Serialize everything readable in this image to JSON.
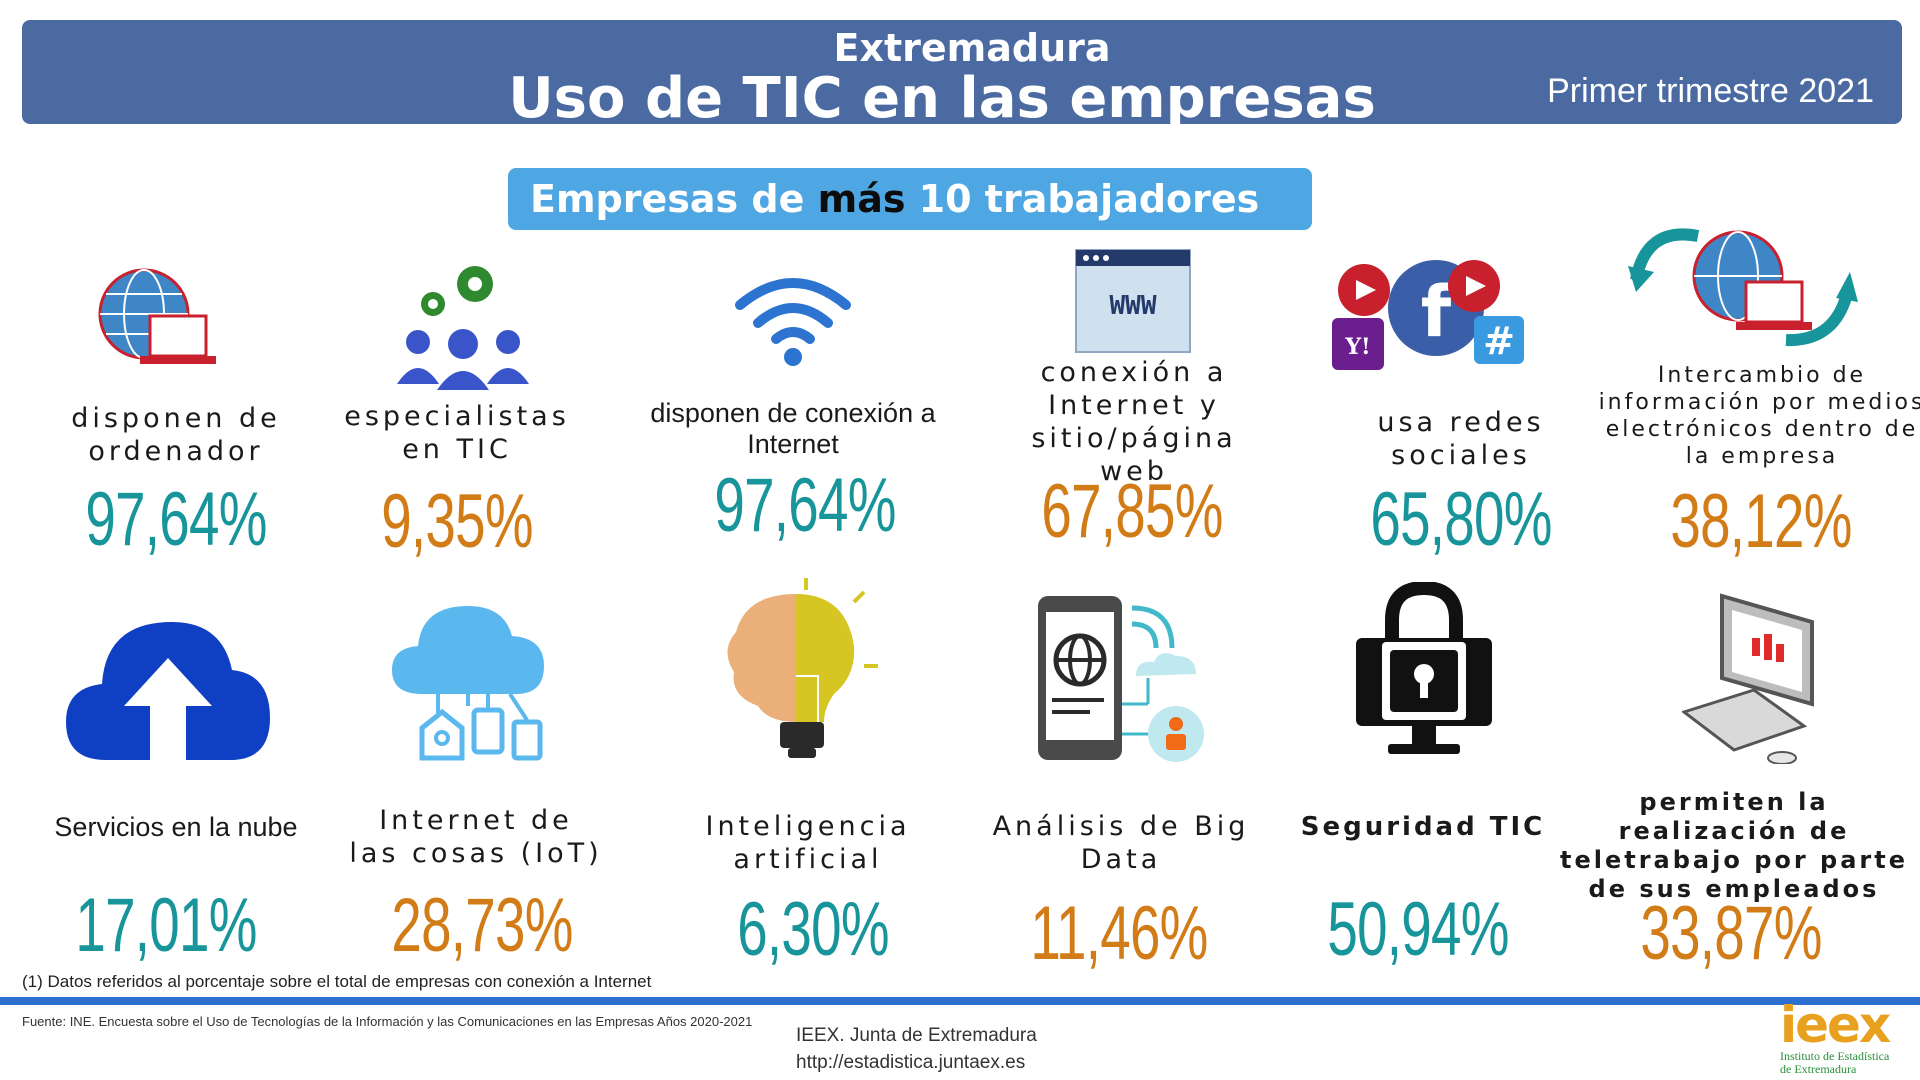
{
  "header": {
    "region": "Extremadura",
    "title": "Uso de TIC en las empresas",
    "period": "Primer trimestre 2021"
  },
  "subheading": {
    "prefix": "Empresas de ",
    "emphasis": "más",
    "suffix": " 10 trabajadores (1)"
  },
  "indicators": [
    {
      "label": "disponen de ordenador",
      "value": "97,64%",
      "icon": "computer-globe-icon",
      "color": "#17959a"
    },
    {
      "label": "especialistas en TIC",
      "value": "9,35%",
      "icon": "people-gears-icon",
      "color": "#d17c17"
    },
    {
      "label": "disponen de conexión a Internet",
      "value": "97,64%",
      "icon": "wifi-icon",
      "color": "#17959a"
    },
    {
      "label": "conexión a Internet y sitio/página web",
      "value": "67,85%",
      "icon": "www-browser-icon",
      "color": "#d17c17"
    },
    {
      "label": "usa redes sociales",
      "value": "65,80%",
      "icon": "social-media-icon",
      "color": "#17959a"
    },
    {
      "label": "Intercambio de información por medios electrónicos dentro de la empresa",
      "value": "38,12%",
      "icon": "data-exchange-icon",
      "color": "#d17c17"
    },
    {
      "label": "Servicios en la nube",
      "value": "17,01%",
      "icon": "cloud-upload-icon",
      "color": "#17959a"
    },
    {
      "label": "Internet de las cosas (IoT)",
      "value": "28,73%",
      "icon": "iot-cloud-icon",
      "color": "#d17c17"
    },
    {
      "label": "Inteligencia artificial",
      "value": "6,30%",
      "icon": "brain-bulb-icon",
      "color": "#17959a"
    },
    {
      "label": "Análisis de Big Data",
      "value": "11,46%",
      "icon": "big-data-phone-icon",
      "color": "#d17c17"
    },
    {
      "label": "Seguridad TIC",
      "value": "50,94%",
      "icon": "security-lock-icon",
      "color": "#17959a"
    },
    {
      "label": "permiten la realización de teletrabajo por parte de sus empleados",
      "value": "33,87%",
      "icon": "telework-computer-icon",
      "color": "#d17c17"
    }
  ],
  "footnote": "(1) Datos referidos al porcentaje sobre el total de empresas con conexión a Internet",
  "source": "Fuente: INE. Encuesta sobre el Uso de Tecnologías de la Información y las Comunicaciones en las Empresas Años 2020-2021",
  "org": {
    "name": "IEEX. Junta de Extremadura",
    "url": "http://estadistica.juntaex.es"
  },
  "logo": {
    "mark": "ieex",
    "line1": "Instituto de Estadística",
    "line2": "de Extremadura"
  }
}
